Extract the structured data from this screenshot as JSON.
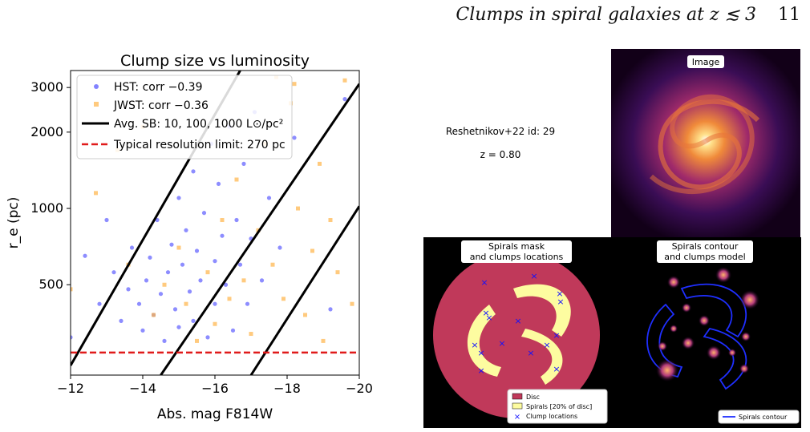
{
  "page": {
    "running_head": "Clumps in spiral galaxies at z ≲ 3",
    "page_number": "11"
  },
  "chart_data": {
    "type": "scatter",
    "title": "Clump size vs luminosity",
    "xlabel": "Abs. mag F814W",
    "ylabel": "r_e (pc)",
    "xlim": [
      -12,
      -20
    ],
    "ylim": [
      220,
      3500
    ],
    "yscale": "log",
    "x_ticks": [
      "−12",
      "−14",
      "−16",
      "−18",
      "−20"
    ],
    "x_tick_values": [
      -12,
      -14,
      -16,
      -18,
      -20
    ],
    "y_ticks": [
      "500",
      "1000",
      "2000",
      "3000"
    ],
    "y_tick_values": [
      500,
      1000,
      2000,
      3000
    ],
    "legend_position": "top-left",
    "series": [
      {
        "name": "HST: corr −0.39",
        "color": "#2f2fff",
        "marker": "circle",
        "points": [
          [
            -12.0,
            310
          ],
          [
            -12.4,
            650
          ],
          [
            -12.8,
            420
          ],
          [
            -13.0,
            900
          ],
          [
            -13.2,
            560
          ],
          [
            -13.4,
            360
          ],
          [
            -13.6,
            480
          ],
          [
            -13.7,
            700
          ],
          [
            -13.9,
            420
          ],
          [
            -14.0,
            330
          ],
          [
            -14.1,
            520
          ],
          [
            -14.2,
            640
          ],
          [
            -14.3,
            380
          ],
          [
            -14.4,
            900
          ],
          [
            -14.5,
            460
          ],
          [
            -14.6,
            300
          ],
          [
            -14.7,
            560
          ],
          [
            -14.8,
            720
          ],
          [
            -14.9,
            400
          ],
          [
            -15.0,
            1100
          ],
          [
            -15.0,
            340
          ],
          [
            -15.1,
            600
          ],
          [
            -15.2,
            820
          ],
          [
            -15.3,
            470
          ],
          [
            -15.4,
            1400
          ],
          [
            -15.4,
            360
          ],
          [
            -15.5,
            680
          ],
          [
            -15.6,
            520
          ],
          [
            -15.7,
            960
          ],
          [
            -15.8,
            310
          ],
          [
            -15.9,
            1800
          ],
          [
            -16.0,
            620
          ],
          [
            -16.0,
            420
          ],
          [
            -16.1,
            1250
          ],
          [
            -16.2,
            780
          ],
          [
            -16.3,
            500
          ],
          [
            -16.4,
            2100
          ],
          [
            -16.5,
            330
          ],
          [
            -16.6,
            900
          ],
          [
            -16.7,
            600
          ],
          [
            -16.8,
            1500
          ],
          [
            -16.9,
            420
          ],
          [
            -17.0,
            760
          ],
          [
            -17.1,
            2400
          ],
          [
            -17.3,
            520
          ],
          [
            -17.5,
            1100
          ],
          [
            -17.8,
            700
          ],
          [
            -18.2,
            1900
          ],
          [
            -19.2,
            400
          ],
          [
            -19.6,
            2700
          ]
        ]
      },
      {
        "name": "JWST: corr −0.36",
        "color": "#ffb347",
        "marker": "square",
        "points": [
          [
            -12.0,
            480
          ],
          [
            -12.7,
            1150
          ],
          [
            -13.3,
            1700
          ],
          [
            -13.6,
            600
          ],
          [
            -14.0,
            2100
          ],
          [
            -14.3,
            380
          ],
          [
            -14.6,
            500
          ],
          [
            -15.0,
            700
          ],
          [
            -15.2,
            420
          ],
          [
            -15.5,
            300
          ],
          [
            -15.8,
            560
          ],
          [
            -16.0,
            350
          ],
          [
            -16.2,
            900
          ],
          [
            -16.4,
            440
          ],
          [
            -16.6,
            1300
          ],
          [
            -16.8,
            520
          ],
          [
            -17.0,
            320
          ],
          [
            -17.2,
            820
          ],
          [
            -17.4,
            1800
          ],
          [
            -17.6,
            600
          ],
          [
            -17.9,
            440
          ],
          [
            -18.1,
            2600
          ],
          [
            -18.3,
            1000
          ],
          [
            -18.5,
            380
          ],
          [
            -18.7,
            680
          ],
          [
            -18.9,
            1500
          ],
          [
            -19.0,
            300
          ],
          [
            -19.2,
            900
          ],
          [
            -19.4,
            560
          ],
          [
            -19.6,
            3200
          ],
          [
            -19.8,
            420
          ],
          [
            -17.7,
            3300
          ],
          [
            -18.2,
            3100
          ]
        ]
      },
      {
        "name": "Avg. SB: 10, 100, 1000 L⊙/pc²",
        "color": "#000000",
        "kind": "lines",
        "lines": [
          {
            "x": [
              -12.0,
              -16.7
            ],
            "y": [
              240,
              3500
            ]
          },
          {
            "x": [
              -14.5,
              -20.0
            ],
            "y": [
              220,
              3100
            ]
          },
          {
            "x": [
              -17.0,
              -20.0
            ],
            "y": [
              220,
              1020
            ]
          }
        ]
      },
      {
        "name": "Typical resolution limit: 270 pc",
        "color": "#e01b1b",
        "kind": "hline",
        "y": 270
      }
    ]
  },
  "right_panel": {
    "info_id": "Reshetnikov+22 id: 29",
    "info_z": "z = 0.80",
    "image_title": "Image",
    "mask_title_1": "Spirals mask",
    "mask_title_2": "and clumps locations",
    "contour_title_1": "Spirals contour",
    "contour_title_2": "and clumps model",
    "mask_legend": [
      "Disc",
      "Spirals [20% of disc]",
      "Clump locations"
    ],
    "contour_legend": "Spirals contour",
    "colors": {
      "disc": "#c0395a",
      "spiral": "#fdfca0",
      "clump_marker": "#1010ff",
      "contour": "#1f2fff"
    }
  }
}
